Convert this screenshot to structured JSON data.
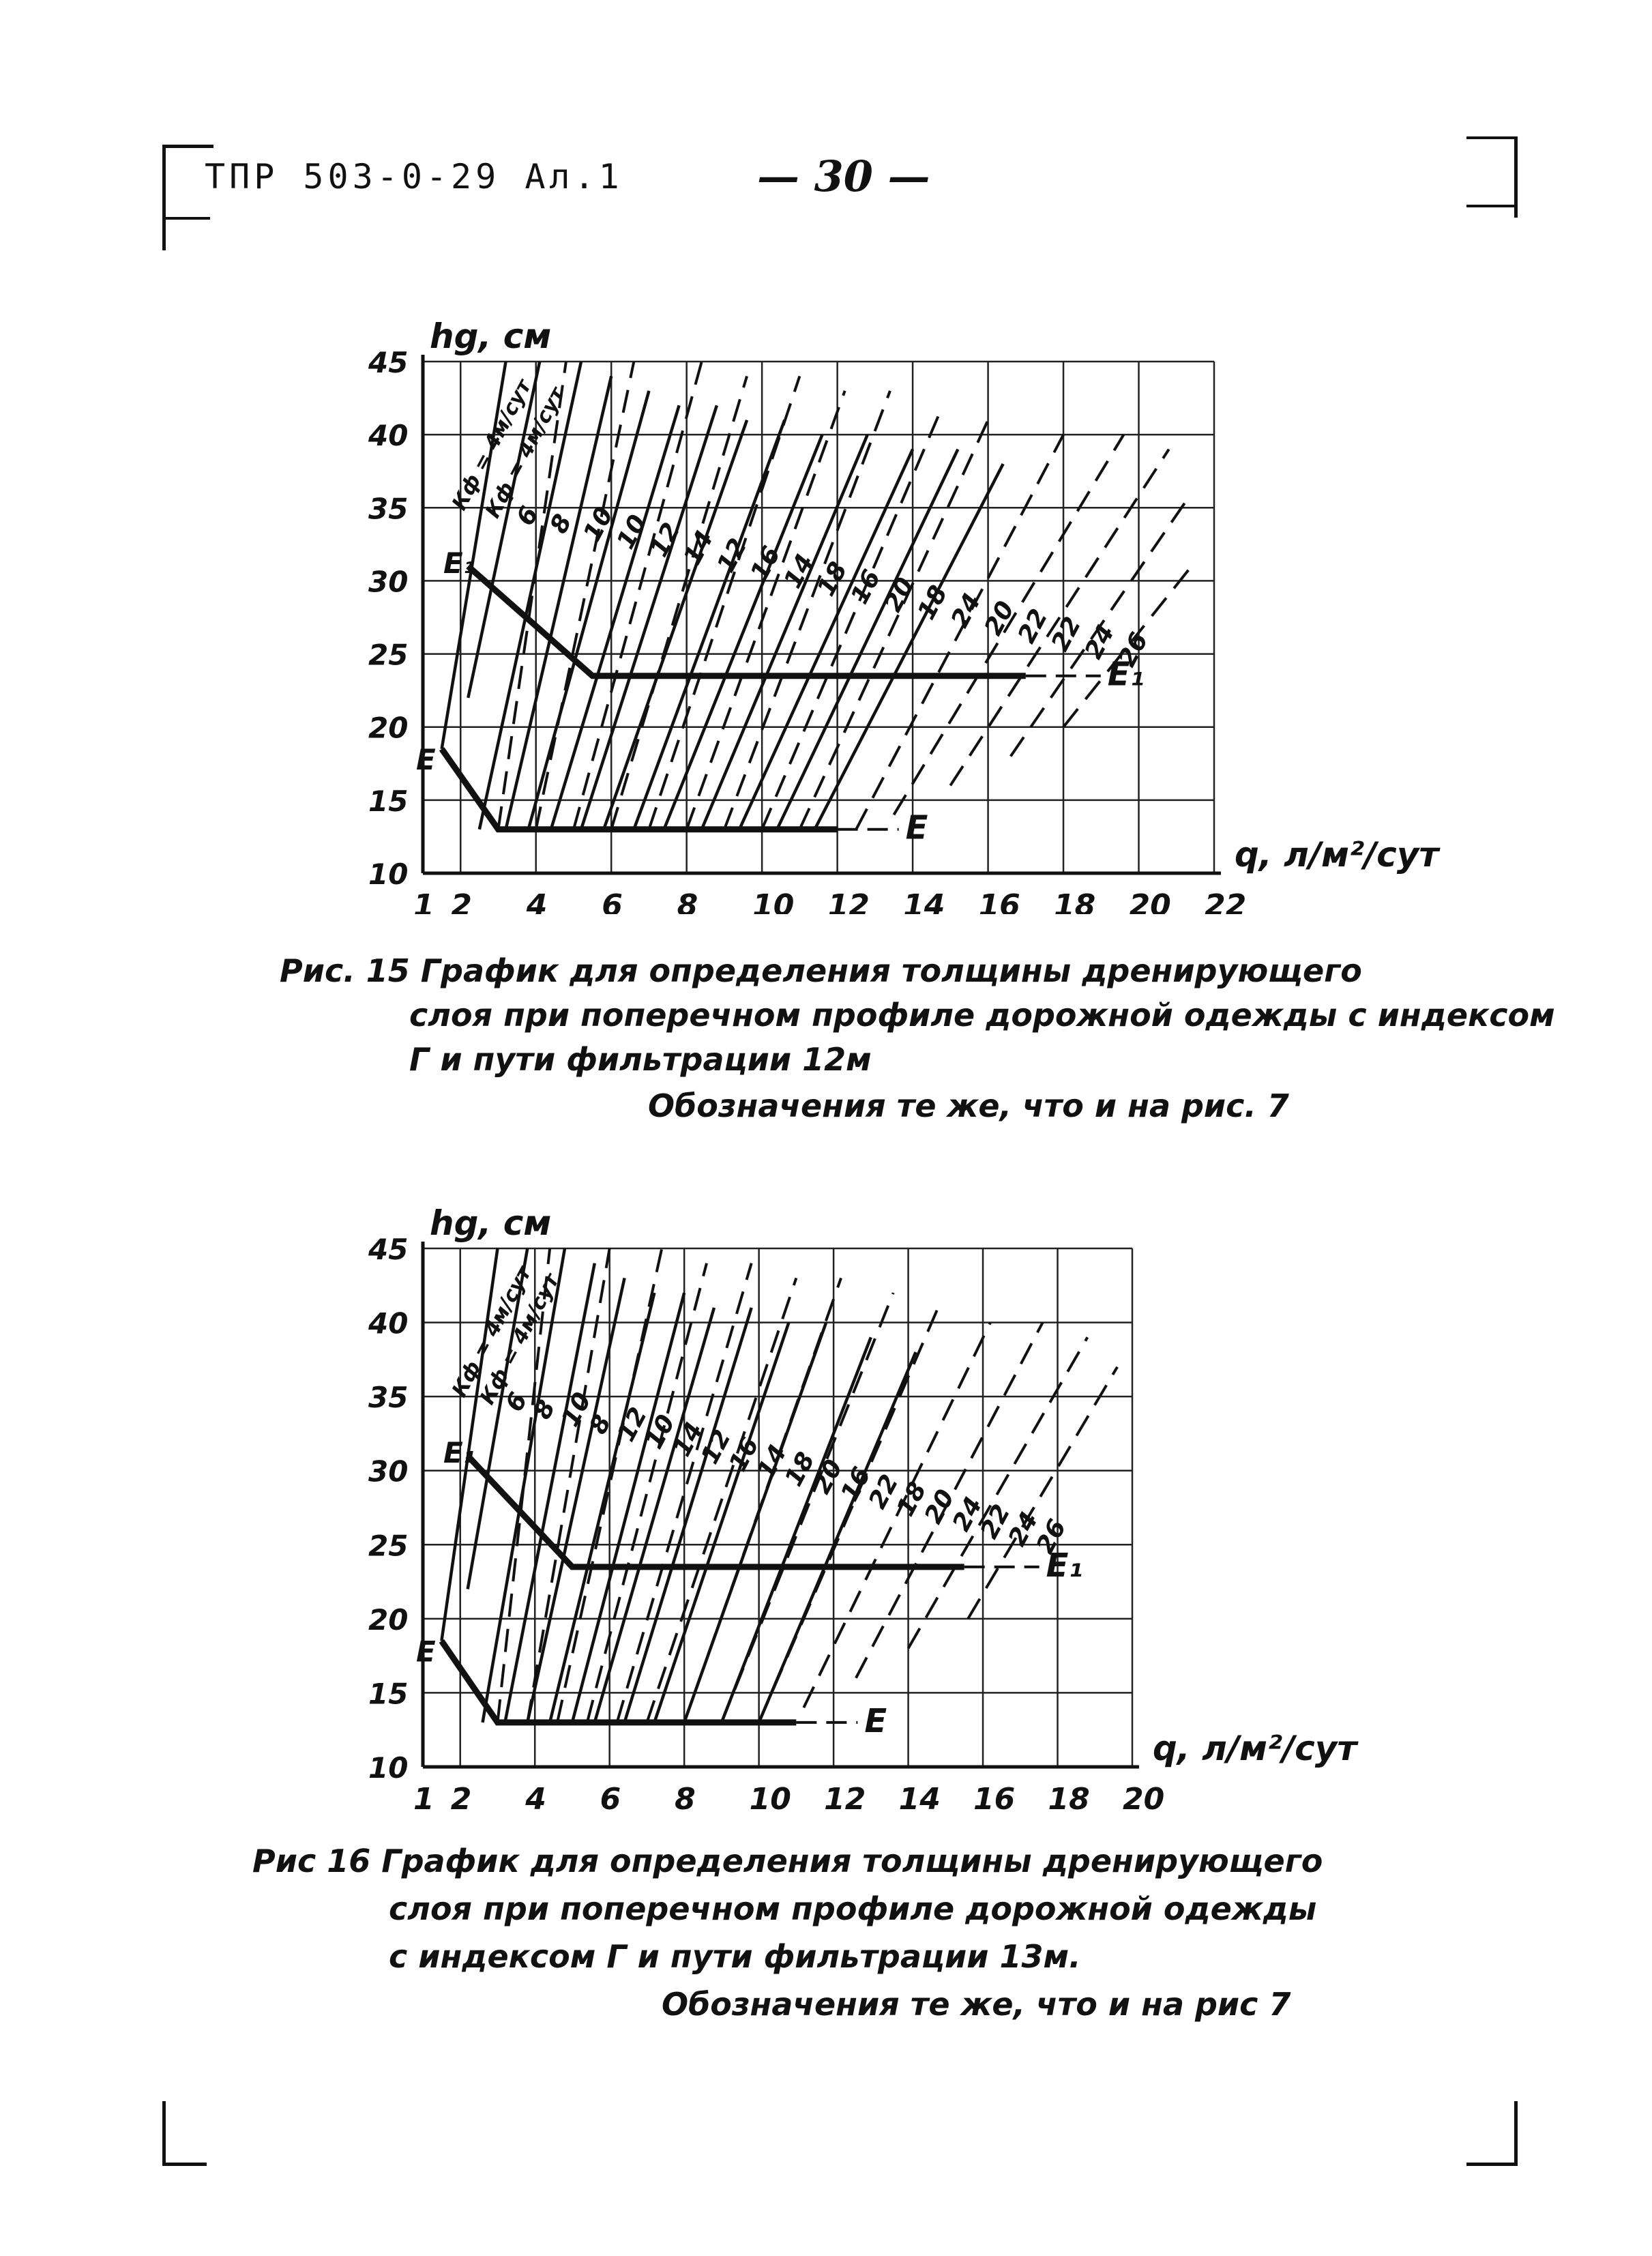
{
  "header": {
    "doc_code": "ТПР 503-0-29 Ал.1",
    "page_number": "— 30 —"
  },
  "figures": [
    {
      "id": "fig15",
      "caption": {
        "line1": "Рис. 15 График для определения толщины дренирующего",
        "line2": "слоя при поперечном профиле дорожной одежды с индексом",
        "line3": "Г и пути фильтрации 12м",
        "line4": "Обозначения те же, что и на рис. 7"
      }
    },
    {
      "id": "fig16",
      "caption": {
        "line1": "Рис 16 График для определения толщины дренирующего",
        "line2": "слоя при поперечном профиле дорожной одежды",
        "line3": "с индексом Г и пути фильтрации 13м.",
        "line4": "Обозначения те же, что и на рис 7"
      }
    }
  ],
  "chart_data": [
    {
      "type": "line",
      "ylabel": "hg, см",
      "xlabel": "q, л/м²/сут",
      "xlim": [
        1,
        22
      ],
      "ylim": [
        10,
        45
      ],
      "x_ticks": [
        "1",
        "2",
        "4",
        "6",
        "8",
        "10",
        "12",
        "14",
        "16",
        "18",
        "20",
        "22"
      ],
      "y_ticks": [
        "10",
        "15",
        "20",
        "25",
        "30",
        "35",
        "40",
        "45"
      ],
      "grid": true,
      "series_labels": [
        "Кф = 4м/сут",
        "Кф = 4м/сут",
        "6",
        "8",
        "10",
        "10",
        "12",
        "14",
        "12",
        "16",
        "14",
        "18",
        "16",
        "20",
        "18",
        "24",
        "20",
        "22",
        "22",
        "24",
        "26"
      ],
      "boundary_labels": {
        "E": "E",
        "E1": "E₁"
      },
      "boundary_E": [
        [
          1.5,
          18.5
        ],
        [
          3,
          13
        ],
        [
          12,
          13
        ]
      ],
      "boundary_E1": [
        [
          2.2,
          31
        ],
        [
          5.5,
          23.5
        ],
        [
          17,
          23.5
        ]
      ],
      "solid_lines": [
        [
          [
            1.5,
            18.5
          ],
          [
            3.2,
            45
          ]
        ],
        [
          [
            2.2,
            22
          ],
          [
            4.1,
            45
          ]
        ],
        [
          [
            2.5,
            13
          ],
          [
            5.2,
            45
          ]
        ],
        [
          [
            3.2,
            13
          ],
          [
            6.0,
            44
          ]
        ],
        [
          [
            3.8,
            13
          ],
          [
            7.0,
            43
          ]
        ],
        [
          [
            4.4,
            13
          ],
          [
            7.8,
            42
          ]
        ],
        [
          [
            5.2,
            13
          ],
          [
            8.8,
            42
          ]
        ],
        [
          [
            5.8,
            13
          ],
          [
            9.6,
            41
          ]
        ],
        [
          [
            6.6,
            13
          ],
          [
            10.6,
            41
          ]
        ],
        [
          [
            7.4,
            13
          ],
          [
            11.6,
            40
          ]
        ],
        [
          [
            8.4,
            13
          ],
          [
            12.8,
            40
          ]
        ],
        [
          [
            9.4,
            13
          ],
          [
            14.0,
            39
          ]
        ],
        [
          [
            10.4,
            13
          ],
          [
            15.2,
            39
          ]
        ],
        [
          [
            11.4,
            13
          ],
          [
            16.4,
            38
          ]
        ]
      ],
      "dashed_lines": [
        [
          [
            3.0,
            13
          ],
          [
            4.8,
            45
          ]
        ],
        [
          [
            4.0,
            13
          ],
          [
            6.6,
            45
          ]
        ],
        [
          [
            5.0,
            13
          ],
          [
            8.4,
            45
          ]
        ],
        [
          [
            6.0,
            13
          ],
          [
            9.6,
            44
          ]
        ],
        [
          [
            7.0,
            13
          ],
          [
            11.0,
            44
          ]
        ],
        [
          [
            8.0,
            13
          ],
          [
            12.2,
            43
          ]
        ],
        [
          [
            9.0,
            13
          ],
          [
            13.4,
            43
          ]
        ],
        [
          [
            10.0,
            13
          ],
          [
            14.8,
            42
          ]
        ],
        [
          [
            11.0,
            13
          ],
          [
            16.0,
            41
          ]
        ],
        [
          [
            12.5,
            13
          ],
          [
            18.0,
            40
          ]
        ],
        [
          [
            13.5,
            14
          ],
          [
            19.6,
            40
          ]
        ],
        [
          [
            15.0,
            16
          ],
          [
            20.8,
            39
          ]
        ],
        [
          [
            16.6,
            18
          ],
          [
            21.4,
            36
          ]
        ],
        [
          [
            18.0,
            20
          ],
          [
            21.4,
            31
          ]
        ]
      ]
    },
    {
      "type": "line",
      "ylabel": "hg, см",
      "xlabel": "q, л/м²/сут",
      "xlim": [
        1,
        20
      ],
      "ylim": [
        10,
        45
      ],
      "x_ticks": [
        "1",
        "2",
        "4",
        "6",
        "8",
        "10",
        "12",
        "14",
        "16",
        "18",
        "20"
      ],
      "y_ticks": [
        "10",
        "15",
        "20",
        "25",
        "30",
        "35",
        "40",
        "45"
      ],
      "grid": true,
      "series_labels": [
        "Кф = 4м/сут",
        "Кф = 4м/сут",
        "6",
        "8",
        "10",
        "8",
        "12",
        "10",
        "14",
        "12",
        "16",
        "14",
        "18",
        "20",
        "16",
        "22",
        "18",
        "20",
        "24",
        "22",
        "24",
        "26"
      ],
      "boundary_labels": {
        "E": "E",
        "E1": "E₁"
      },
      "boundary_E": [
        [
          1.5,
          18.5
        ],
        [
          3,
          13
        ],
        [
          11,
          13
        ]
      ],
      "boundary_E1": [
        [
          2.2,
          31
        ],
        [
          5,
          23.5
        ],
        [
          15.5,
          23.5
        ]
      ],
      "solid_lines": [
        [
          [
            1.5,
            18.5
          ],
          [
            3.0,
            45
          ]
        ],
        [
          [
            2.2,
            22
          ],
          [
            3.8,
            45
          ]
        ],
        [
          [
            2.6,
            13
          ],
          [
            4.8,
            45
          ]
        ],
        [
          [
            3.2,
            13
          ],
          [
            5.6,
            44
          ]
        ],
        [
          [
            3.8,
            13
          ],
          [
            6.4,
            43
          ]
        ],
        [
          [
            4.4,
            13
          ],
          [
            7.2,
            42
          ]
        ],
        [
          [
            5.0,
            13
          ],
          [
            8.0,
            42
          ]
        ],
        [
          [
            5.6,
            13
          ],
          [
            8.8,
            41
          ]
        ],
        [
          [
            6.4,
            13
          ],
          [
            9.8,
            41
          ]
        ],
        [
          [
            7.2,
            13
          ],
          [
            10.8,
            40
          ]
        ],
        [
          [
            8.0,
            13
          ],
          [
            11.8,
            40
          ]
        ],
        [
          [
            9.0,
            13
          ],
          [
            13.0,
            39
          ]
        ],
        [
          [
            10.0,
            13
          ],
          [
            14.2,
            38
          ]
        ]
      ],
      "dashed_lines": [
        [
          [
            3.0,
            13
          ],
          [
            4.4,
            45
          ]
        ],
        [
          [
            3.8,
            13
          ],
          [
            6.0,
            45
          ]
        ],
        [
          [
            4.6,
            13
          ],
          [
            7.4,
            45
          ]
        ],
        [
          [
            5.4,
            13
          ],
          [
            8.6,
            44
          ]
        ],
        [
          [
            6.2,
            13
          ],
          [
            9.8,
            44
          ]
        ],
        [
          [
            7.0,
            13
          ],
          [
            11.0,
            43
          ]
        ],
        [
          [
            8.0,
            13
          ],
          [
            12.2,
            43
          ]
        ],
        [
          [
            9.0,
            13
          ],
          [
            13.6,
            42
          ]
        ],
        [
          [
            10.0,
            13
          ],
          [
            14.8,
            41
          ]
        ],
        [
          [
            11.2,
            14
          ],
          [
            16.2,
            40
          ]
        ],
        [
          [
            12.6,
            16
          ],
          [
            17.6,
            40
          ]
        ],
        [
          [
            14.0,
            18
          ],
          [
            18.8,
            39
          ]
        ],
        [
          [
            15.6,
            20
          ],
          [
            19.6,
            37
          ]
        ]
      ]
    }
  ]
}
